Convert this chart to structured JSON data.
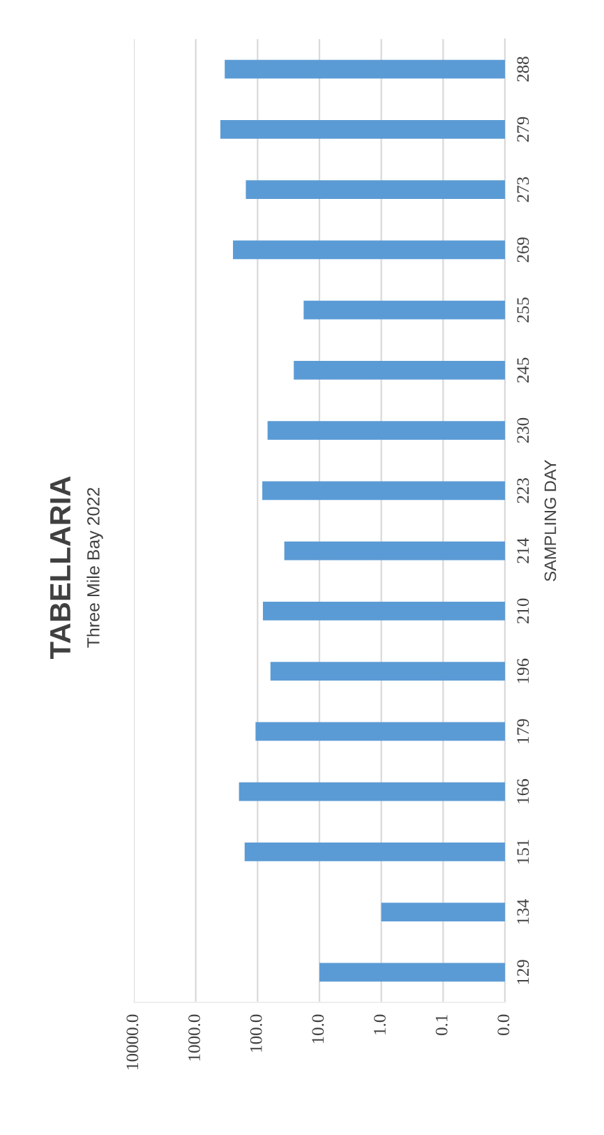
{
  "chart_data": {
    "type": "bar",
    "orientation": "horizontal",
    "title": "TABELLARIA",
    "subtitle": "Three Mile Bay 2022",
    "ylabel": "SAMPLING DAY",
    "categories": [
      "288",
      "279",
      "273",
      "269",
      "255",
      "245",
      "230",
      "223",
      "214",
      "210",
      "196",
      "179",
      "166",
      "151",
      "134",
      "129"
    ],
    "values": [
      340,
      400,
      155,
      250,
      18,
      26,
      69,
      84,
      37,
      82,
      62,
      108,
      200,
      162,
      1.0,
      10
    ],
    "color": "#5b9bd5",
    "log": "x",
    "xlim": [
      10000,
      0.01
    ],
    "xticks": [
      {
        "value": 0.01,
        "label": "0.0"
      },
      {
        "value": 0.1,
        "label": "0.1"
      },
      {
        "value": 1,
        "label": "1.0"
      },
      {
        "value": 10,
        "label": "10.0"
      },
      {
        "value": 100,
        "label": "100.0"
      },
      {
        "value": 1000,
        "label": "1000.0"
      },
      {
        "value": 10000,
        "label": "10000.0"
      }
    ],
    "grid": "x"
  }
}
